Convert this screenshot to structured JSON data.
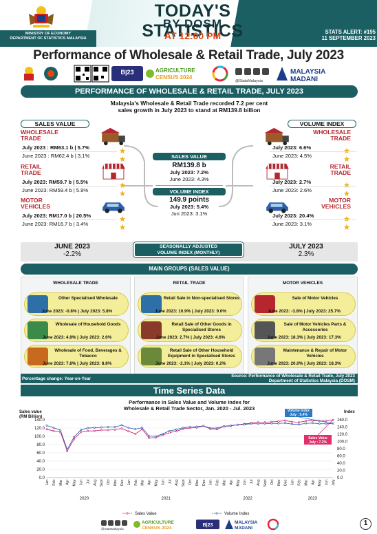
{
  "header": {
    "title_line1": "TODAY'S STATISTICS",
    "title_line2": "BY DOSM",
    "title_line3": "AT 12:00 PM",
    "ministry_line1": "MINISTRY OF ECONOMY",
    "ministry_line2": "DEPARTMENT OF STATISTICS MALAYSIA",
    "alert_line1": "STATS ALERT: #195",
    "alert_line2": "11 SEPTEMBER 2023"
  },
  "page_title": "Performance of Wholesale & Retail Trade, July 2023",
  "logos": {
    "agri_line1": "AGRICULTURE",
    "agri_line2": "CENSUS 2024",
    "stats_handle": "@StatsMalaysia",
    "madani_line1": "MALAYSIA",
    "madani_line2": "MADANI",
    "banci": "BANCI EKONOMI 2023"
  },
  "banner": "PERFORMANCE OF WHOLESALE & RETAIL TRADE, JULY 2023",
  "summary": "Malaysia's Wholesale & Retail Trade recorded 7.2 per cent sales growth in July 2023 to stand at RM139.8 billion",
  "sales_value": {
    "heading": "SALES VALUE",
    "items": [
      {
        "label1": "WHOLESALE",
        "label2": "TRADE",
        "cur": "July 2023 : RM63.1 b | 5.7%",
        "prev": "June 2023 : RM62.4 b | 3.1%"
      },
      {
        "label1": "RETAIL",
        "label2": "TRADE",
        "cur": "July 2023: RM59.7 b | 5.5%",
        "prev": "June 2023: RM59.4 b | 5.9%"
      },
      {
        "label1": "MOTOR",
        "label2": "VEHICLES",
        "cur": "July 2023: RM17.0 b | 20.5%",
        "prev": "June 2023: RM16.7 b | 3.4%"
      }
    ]
  },
  "volume_index": {
    "heading": "VOLUME INDEX",
    "items": [
      {
        "label1": "WHOLESALE",
        "label2": "TRADE",
        "cur": "July 2023: 6.6%",
        "prev": "June 2023: 4.5%"
      },
      {
        "label1": "RETAIL",
        "label2": "TRADE",
        "cur": "July 2023: 2.7%",
        "prev": "June 2023: 2.6%"
      },
      {
        "label1": "MOTOR",
        "label2": "VEHICLES",
        "cur": "July 2023: 20.4%",
        "prev": "June 2023: 3.1%"
      }
    ]
  },
  "center": {
    "sv_head": "SALES VALUE",
    "sv_value": "RM139.8 b",
    "sv_cur": "July 2023: 7.2%",
    "sv_prev": "June 2023: 4.3%",
    "vi_head": "VOLUME INDEX",
    "vi_value": "149.9 points",
    "vi_cur": "July 2023: 5.4%",
    "vi_prev": "Jun 2023: 3.1%"
  },
  "seasonal": {
    "left_month": "JUNE 2023",
    "left_val": "-2.2%",
    "label1": "SEASONALLY ADJUSTED",
    "label2": "VOLUME INDEX (MONTHLY)",
    "right_month": "JULY 2023",
    "right_val": "2.3%"
  },
  "main_groups": {
    "heading": "MAIN GROUPS (SALES VALUE)",
    "columns": [
      {
        "heading": "WHOLESALE TRADE",
        "items": [
          {
            "name": "Other Specialised Wholesale",
            "val": "June 2023: -0.8% | July 2023: 5.8%"
          },
          {
            "name": "Wholesale of Household Goods",
            "val": "June 2023: 4.8% | July 2023: 2.6%"
          },
          {
            "name": "Wholesale of Food, Beverages & Tobacco",
            "val": "June 2023: 7.8% | July 2023: 8.8%"
          }
        ]
      },
      {
        "heading": "RETAIL TRADE",
        "items": [
          {
            "name": "Retail Sale in Non-specialised Stores",
            "val": "June 2023: 10.9% | July 2023: 9.0%"
          },
          {
            "name": "Retail Sale of Other Goods in Specialised Stores",
            "val": "June 2023: 2.7% | July 2023: 4.6%"
          },
          {
            "name": "Retail Sale of Other Household Equipment in Specialised Stores",
            "val": "June 2023: -2.1% | July 2023: 0.2%"
          }
        ]
      },
      {
        "heading": "MOTOR VEHICLES",
        "items": [
          {
            "name": "Sale of Motor Vehicles",
            "val": "June 2023: -3.8% | July 2023: 25.7%"
          },
          {
            "name": "Sale of Motor Vehicles Parts & Accessories",
            "val": "June 2023: 18.3% | July 2023: 17.3%"
          },
          {
            "name": "Maintenance & Repair of Motor Vehicles",
            "val": "June 2023: 20.0% | July 2023: 18.3%"
          }
        ]
      }
    ]
  },
  "footer": {
    "left": "Percentage change: Year-on-Year",
    "source1": "Source: Performance of Wholesale & Retail Trade, July 2023",
    "source2": "Department of Statistics Malaysia (DOSM)"
  },
  "time_series": {
    "heading": "Time Series Data",
    "chart_title1": "Performance in Sales Value and Volume Index for",
    "chart_title2": "Wholesale & Retail Trade Sector, Jan. 2020 - Jul. 2023"
  },
  "chart_data": {
    "type": "line",
    "title": "Performance in Sales Value and Volume Index for Wholesale & Retail Trade Sector, Jan. 2020 - Jul. 2023",
    "ylabel": "Sales value (RM Billion)",
    "y2label": "Index",
    "ylim": [
      0,
      140
    ],
    "y2lim": [
      0,
      160
    ],
    "yticks": [
      "0.0",
      "20.0",
      "40.0",
      "60.0",
      "80.0",
      "100.0",
      "120.0",
      "140.0"
    ],
    "y2ticks": [
      "0.0",
      "20.0",
      "40.0",
      "60.0",
      "80.0",
      "100.0",
      "120.0",
      "140.0",
      "160.0"
    ],
    "x": [
      "Jan",
      "Feb",
      "Mar",
      "Apr",
      "May",
      "Jun",
      "Jul",
      "Aug",
      "Sept",
      "Oct",
      "Nov",
      "Dec",
      "Jan",
      "Feb",
      "Mar",
      "Apr",
      "May",
      "Jun",
      "Jul",
      "Aug",
      "Sept",
      "Oct",
      "Nov",
      "Dec",
      "Jan",
      "Feb",
      "Mar",
      "Apr",
      "May",
      "Jun",
      "Jul",
      "Aug",
      "Sept",
      "Oct",
      "Nov",
      "Dec",
      "Jan",
      "Feb",
      "Mar",
      "Apr",
      "May",
      "Jun",
      "July"
    ],
    "years": [
      {
        "label": "2020",
        "center": 5.5
      },
      {
        "label": "2021",
        "center": 17.5
      },
      {
        "label": "2022",
        "center": 29.5
      },
      {
        "label": "2023",
        "center": 39
      }
    ],
    "series": [
      {
        "name": "Sales Value",
        "axis": "left",
        "color": "#c2186b",
        "values": [
          117,
          113,
          110,
          64,
          93,
          110,
          113,
          113,
          115,
          115,
          116,
          119,
          112,
          106,
          117,
          96,
          97,
          103,
          109,
          112,
          118,
          120,
          121,
          125,
          118,
          117,
          124,
          125,
          128,
          130,
          132,
          134,
          134,
          135,
          136,
          138,
          135,
          134,
          137,
          138,
          137,
          137,
          139.8
        ]
      },
      {
        "name": "Volume Index",
        "axis": "right",
        "color": "#2e4aa8",
        "values": [
          144,
          138,
          131,
          78,
          112,
          132,
          137,
          138,
          139,
          140,
          140,
          145,
          138,
          134,
          138,
          115,
          114,
          121,
          129,
          133,
          138,
          140,
          141,
          143,
          137,
          137,
          142,
          144,
          146,
          147,
          149,
          149,
          149,
          150,
          150,
          151,
          148,
          147,
          150,
          151,
          149,
          149,
          149.9
        ]
      }
    ],
    "annotations": [
      {
        "series": "Volume Index",
        "line1": "Volume Index",
        "line2": "July : 5.4%",
        "color": "#2b78c5"
      },
      {
        "series": "Sales Value",
        "line1": "Sales Value",
        "line2": "July : 7.2%",
        "color": "#e0306b"
      }
    ],
    "legend": "bottom"
  },
  "page_number": "1",
  "colors": {
    "teal": "#1b5f63",
    "orange": "#e8440e",
    "red_label": "#b5262e",
    "pill": "#f4ed9a"
  }
}
